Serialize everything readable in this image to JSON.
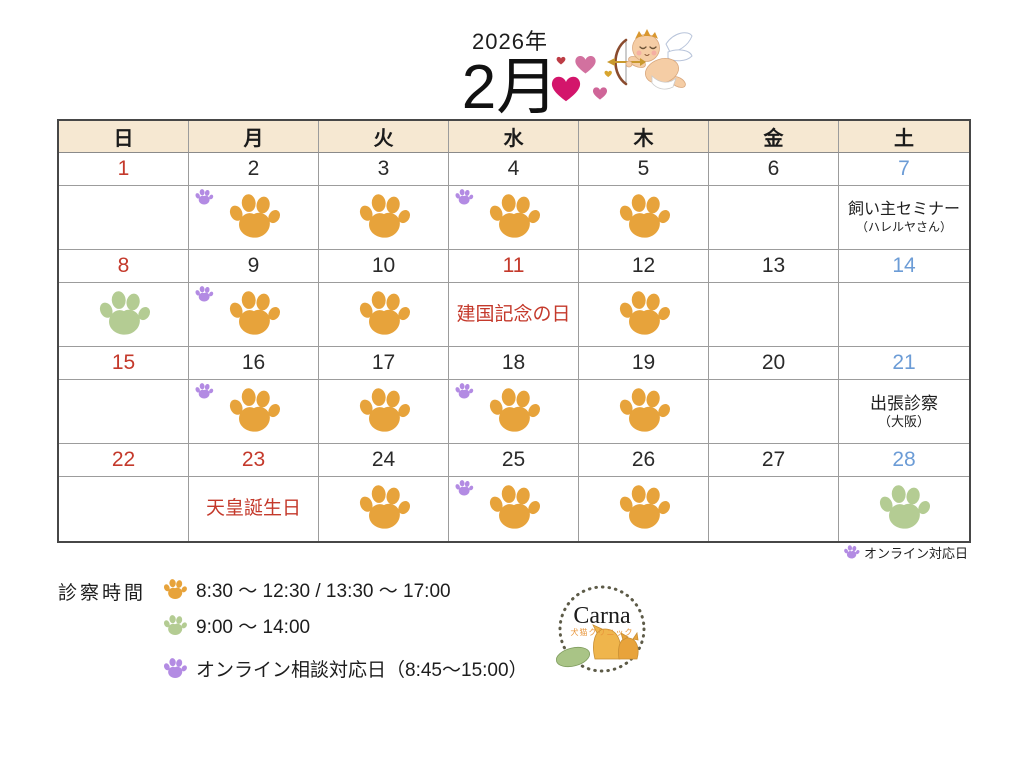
{
  "title": {
    "year": "2026年",
    "month": "2月"
  },
  "calendar": {
    "weekday_headers": [
      "日",
      "月",
      "火",
      "水",
      "木",
      "金",
      "土"
    ],
    "weeks": [
      {
        "dates": [
          {
            "day": "1",
            "color": "red"
          },
          {
            "day": "2",
            "color": "black"
          },
          {
            "day": "3",
            "color": "black"
          },
          {
            "day": "4",
            "color": "black"
          },
          {
            "day": "5",
            "color": "black"
          },
          {
            "day": "6",
            "color": "black"
          },
          {
            "day": "7",
            "color": "blue"
          }
        ],
        "cells": [
          {
            "type": "empty"
          },
          {
            "type": "paw",
            "paw": "orange",
            "online": true
          },
          {
            "type": "paw",
            "paw": "orange"
          },
          {
            "type": "paw",
            "paw": "orange",
            "online": true
          },
          {
            "type": "paw",
            "paw": "orange"
          },
          {
            "type": "empty"
          },
          {
            "type": "note",
            "style": "plain",
            "lines": [
              "飼い主セミナー",
              "（ハレルヤさん）"
            ]
          }
        ]
      },
      {
        "dates": [
          {
            "day": "8",
            "color": "red"
          },
          {
            "day": "9",
            "color": "black"
          },
          {
            "day": "10",
            "color": "black"
          },
          {
            "day": "11",
            "color": "red"
          },
          {
            "day": "12",
            "color": "black"
          },
          {
            "day": "13",
            "color": "black"
          },
          {
            "day": "14",
            "color": "blue"
          }
        ],
        "cells": [
          {
            "type": "paw",
            "paw": "green"
          },
          {
            "type": "paw",
            "paw": "orange",
            "online": true
          },
          {
            "type": "paw",
            "paw": "orange"
          },
          {
            "type": "note",
            "style": "red",
            "lines": [
              "建国記念の日"
            ]
          },
          {
            "type": "paw",
            "paw": "orange"
          },
          {
            "type": "empty"
          },
          {
            "type": "empty"
          }
        ]
      },
      {
        "dates": [
          {
            "day": "15",
            "color": "red"
          },
          {
            "day": "16",
            "color": "black"
          },
          {
            "day": "17",
            "color": "black"
          },
          {
            "day": "18",
            "color": "black"
          },
          {
            "day": "19",
            "color": "black"
          },
          {
            "day": "20",
            "color": "black"
          },
          {
            "day": "21",
            "color": "blue"
          }
        ],
        "cells": [
          {
            "type": "empty"
          },
          {
            "type": "paw",
            "paw": "orange",
            "online": true
          },
          {
            "type": "paw",
            "paw": "orange"
          },
          {
            "type": "paw",
            "paw": "orange",
            "online": true
          },
          {
            "type": "paw",
            "paw": "orange"
          },
          {
            "type": "empty"
          },
          {
            "type": "note",
            "style": "big",
            "lines": [
              "出張診察",
              "（大阪）"
            ]
          }
        ]
      },
      {
        "dates": [
          {
            "day": "22",
            "color": "red"
          },
          {
            "day": "23",
            "color": "red"
          },
          {
            "day": "24",
            "color": "black"
          },
          {
            "day": "25",
            "color": "black"
          },
          {
            "day": "26",
            "color": "black"
          },
          {
            "day": "27",
            "color": "black"
          },
          {
            "day": "28",
            "color": "blue"
          }
        ],
        "cells": [
          {
            "type": "empty"
          },
          {
            "type": "note",
            "style": "red",
            "lines": [
              "天皇誕生日"
            ]
          },
          {
            "type": "paw",
            "paw": "orange"
          },
          {
            "type": "paw",
            "paw": "orange",
            "online": true
          },
          {
            "type": "paw",
            "paw": "orange"
          },
          {
            "type": "empty"
          },
          {
            "type": "paw",
            "paw": "green"
          }
        ]
      }
    ]
  },
  "online_legend": {
    "label": "オンライン対応日"
  },
  "hours_legend": {
    "title": "診察時間",
    "items": [
      {
        "paw": "orange",
        "text": "8:30 ～ 12:30 / 13:30 ～ 17:00"
      },
      {
        "paw": "green",
        "text": "9:00 ～ 14:00"
      },
      {
        "paw": "purple",
        "text": "オンライン相談対応日（8:45～15:00）",
        "gap": true
      }
    ]
  },
  "logo": {
    "name": "Carna",
    "subtitle": "犬猫クリニック"
  },
  "colors": {
    "paw_orange": "#e7a33b",
    "paw_green": "#b4cc93",
    "paw_purple": "#b38be3",
    "date_red": "#c4392b",
    "date_blue": "#6c9cd6",
    "header_bg": "#f6e8d2"
  }
}
